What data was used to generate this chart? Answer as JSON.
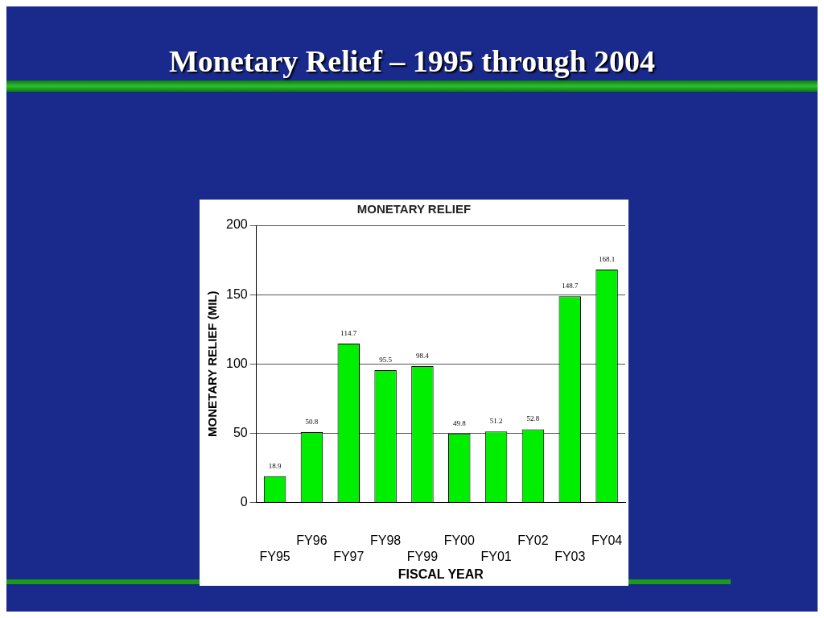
{
  "chart_data": {
    "type": "bar",
    "title": "Monetary Relief – 1995 through 2004",
    "subtitle": "MONETARY RELIEF",
    "xlabel": "FISCAL YEAR",
    "ylabel": "MONETARY RELIEF (MIL)",
    "categories": [
      "FY95",
      "FY96",
      "FY97",
      "FY98",
      "FY99",
      "FY00",
      "FY01",
      "FY02",
      "FY03",
      "FY04"
    ],
    "values": [
      18.9,
      50.8,
      114.7,
      95.5,
      98.4,
      49.8,
      51.2,
      52.8,
      148.7,
      168.1
    ],
    "color": "#00ee00",
    "ylim": [
      0,
      200
    ],
    "yticks": [
      0,
      50,
      100,
      150,
      200
    ],
    "grid": "y",
    "data_labels": true,
    "legend": false
  }
}
